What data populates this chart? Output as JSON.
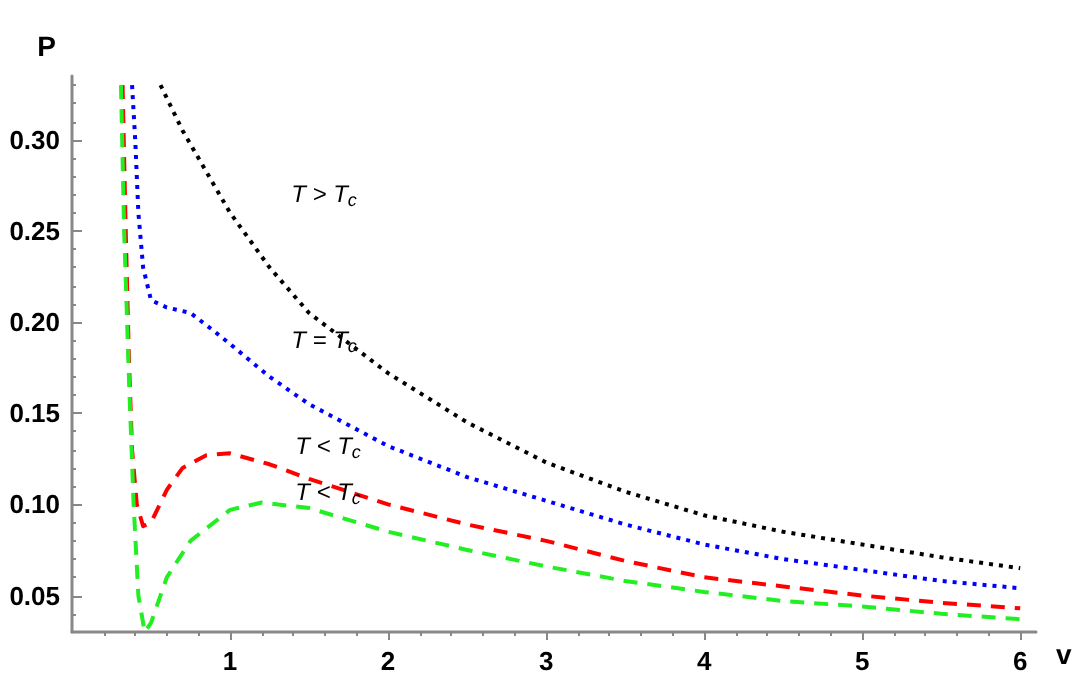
{
  "chart_data": {
    "type": "line",
    "xlabel": "v",
    "ylabel": "P",
    "xlim": [
      0,
      6.1
    ],
    "ylim": [
      0.03,
      0.335
    ],
    "xticks": [
      1,
      2,
      3,
      4,
      5,
      6
    ],
    "yticks": [
      {
        "value": 0.05,
        "label": "0.05"
      },
      {
        "value": 0.1,
        "label": "0.10"
      },
      {
        "value": 0.15,
        "label": "0.15"
      },
      {
        "value": 0.2,
        "label": "0.20"
      },
      {
        "value": 0.25,
        "label": "0.25"
      },
      {
        "value": 0.3,
        "label": "0.30"
      }
    ],
    "grid": false,
    "marker": "none",
    "series": [
      {
        "color": "#000000",
        "line_style": "dotted",
        "x": [
          0.56,
          0.7,
          0.9,
          1.0,
          1.25,
          1.5,
          2,
          2.5,
          3,
          3.5,
          4,
          4.5,
          5,
          5.5,
          6
        ],
        "values": [
          0.33,
          0.305,
          0.275,
          0.26,
          0.23,
          0.205,
          0.172,
          0.145,
          0.123,
          0.107,
          0.094,
          0.085,
          0.078,
          0.071,
          0.065
        ]
      },
      {
        "color": "#0000ff",
        "line_style": "dotted",
        "x": [
          0.38,
          0.4,
          0.42,
          0.45,
          0.5,
          0.6,
          0.75,
          0.9,
          1.0,
          1.25,
          1.5,
          2,
          2.5,
          3,
          3.5,
          4,
          4.5,
          5,
          5.5,
          6
        ],
        "values": [
          0.33,
          0.3,
          0.26,
          0.23,
          0.212,
          0.208,
          0.205,
          0.195,
          0.188,
          0.17,
          0.155,
          0.132,
          0.115,
          0.102,
          0.089,
          0.078,
          0.07,
          0.064,
          0.058,
          0.054
        ]
      },
      {
        "color": "#ff0000",
        "line_style": "dashed",
        "x": [
          0.32,
          0.34,
          0.36,
          0.38,
          0.41,
          0.45,
          0.5,
          0.6,
          0.7,
          0.85,
          1.0,
          1.25,
          1.5,
          2,
          2.5,
          3,
          3.5,
          4,
          4.5,
          5,
          5.5,
          6
        ],
        "values": [
          0.33,
          0.25,
          0.18,
          0.13,
          0.1,
          0.088,
          0.09,
          0.108,
          0.12,
          0.127,
          0.128,
          0.122,
          0.114,
          0.1,
          0.089,
          0.08,
          0.069,
          0.06,
          0.055,
          0.05,
          0.046,
          0.043
        ]
      },
      {
        "color": "#22ee22",
        "line_style": "dashed",
        "x": [
          0.31,
          0.33,
          0.36,
          0.39,
          0.42,
          0.46,
          0.5,
          0.6,
          0.75,
          1.0,
          1.2,
          1.5,
          2,
          2.5,
          3,
          3.5,
          4,
          4.5,
          5,
          5.5,
          6
        ],
        "values": [
          0.33,
          0.25,
          0.17,
          0.1,
          0.05,
          0.03,
          0.035,
          0.06,
          0.08,
          0.097,
          0.101,
          0.098,
          0.085,
          0.075,
          0.066,
          0.058,
          0.052,
          0.047,
          0.044,
          0.04,
          0.037
        ]
      }
    ],
    "annotations": [
      "T > T$_{c}$",
      "T = T$_{c}$",
      "T < T$_{c}$",
      "T < T$_{c}$"
    ]
  }
}
